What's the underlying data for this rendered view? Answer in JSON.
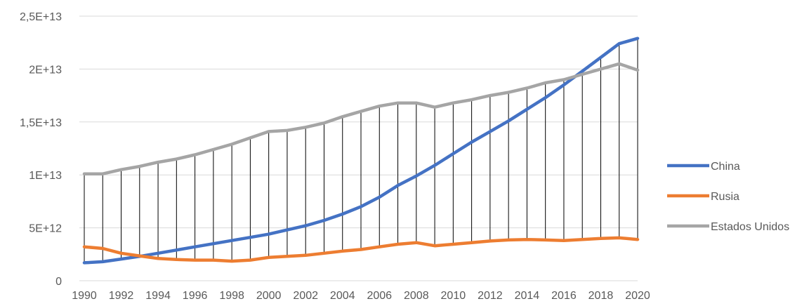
{
  "chart_data": {
    "type": "line",
    "title": "",
    "xlabel": "",
    "ylabel": "",
    "ylim": [
      0,
      25000000000000
    ],
    "grid": true,
    "legend_position": "right",
    "drop_lines": true,
    "x": [
      1990,
      1991,
      1992,
      1993,
      1994,
      1995,
      1996,
      1997,
      1998,
      1999,
      2000,
      2001,
      2002,
      2003,
      2004,
      2005,
      2006,
      2007,
      2008,
      2009,
      2010,
      2011,
      2012,
      2013,
      2014,
      2015,
      2016,
      2017,
      2018,
      2019,
      2020
    ],
    "x_tick_labels": [
      "1990",
      "1992",
      "1994",
      "1996",
      "1998",
      "2000",
      "2002",
      "2004",
      "2006",
      "2008",
      "2010",
      "2012",
      "2014",
      "2016",
      "2018",
      "2020"
    ],
    "y_ticks": [
      0,
      5000000000000,
      10000000000000,
      15000000000000,
      20000000000000,
      25000000000000
    ],
    "y_tick_labels": [
      "0",
      "5E+12",
      "1E+13",
      "1,5E+13",
      "2E+13",
      "2,5E+13"
    ],
    "series": [
      {
        "name": "China",
        "color": "#4472C4",
        "values": [
          1700000000000.0,
          1800000000000.0,
          2050000000000.0,
          2300000000000.0,
          2600000000000.0,
          2900000000000.0,
          3200000000000.0,
          3500000000000.0,
          3800000000000.0,
          4100000000000.0,
          4400000000000.0,
          4800000000000.0,
          5200000000000.0,
          5700000000000.0,
          6300000000000.0,
          7000000000000.0,
          7900000000000.0,
          9000000000000.0,
          9900000000000.0,
          10900000000000.0,
          12000000000000.0,
          13100000000000.0,
          14100000000000.0,
          15100000000000.0,
          16200000000000.0,
          17300000000000.0,
          18500000000000.0,
          19800000000000.0,
          21100000000000.0,
          22400000000000.0,
          22900000000000.0
        ]
      },
      {
        "name": "Rusia",
        "color": "#ED7D31",
        "values": [
          3200000000000.0,
          3050000000000.0,
          2600000000000.0,
          2350000000000.0,
          2100000000000.0,
          2000000000000.0,
          1950000000000.0,
          1950000000000.0,
          1850000000000.0,
          1950000000000.0,
          2200000000000.0,
          2300000000000.0,
          2400000000000.0,
          2600000000000.0,
          2800000000000.0,
          2950000000000.0,
          3200000000000.0,
          3450000000000.0,
          3600000000000.0,
          3300000000000.0,
          3450000000000.0,
          3600000000000.0,
          3750000000000.0,
          3850000000000.0,
          3900000000000.0,
          3850000000000.0,
          3800000000000.0,
          3900000000000.0,
          4000000000000.0,
          4050000000000.0,
          3900000000000.0
        ]
      },
      {
        "name": "Estados Unidos",
        "color": "#A5A5A5",
        "values": [
          10100000000000.0,
          10100000000000.0,
          10500000000000.0,
          10800000000000.0,
          11200000000000.0,
          11500000000000.0,
          11900000000000.0,
          12400000000000.0,
          12900000000000.0,
          13500000000000.0,
          14100000000000.0,
          14200000000000.0,
          14500000000000.0,
          14900000000000.0,
          15500000000000.0,
          16000000000000.0,
          16500000000000.0,
          16800000000000.0,
          16800000000000.0,
          16400000000000.0,
          16800000000000.0,
          17100000000000.0,
          17500000000000.0,
          17800000000000.0,
          18200000000000.0,
          18700000000000.0,
          19000000000000.0,
          19500000000000.0,
          20000000000000.0,
          20500000000000.0,
          19900000000000.0
        ]
      }
    ]
  }
}
